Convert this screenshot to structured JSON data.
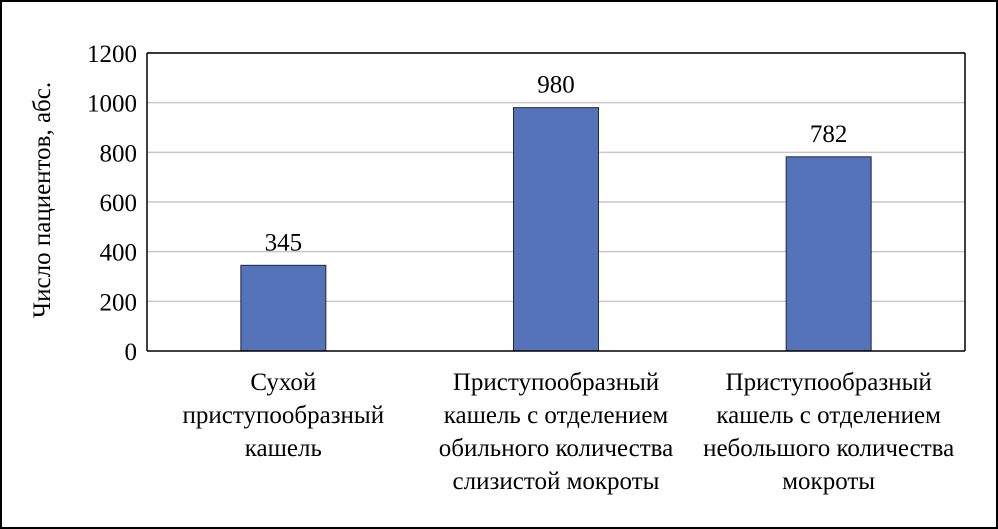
{
  "chart_data": {
    "type": "bar",
    "categories": [
      [
        "Сухой",
        "приступообразный",
        "кашель"
      ],
      [
        "Приступообразный",
        "кашель с отделением",
        "обильного количества",
        "слизистой мокроты"
      ],
      [
        "Приступообразный",
        "кашель с отделением",
        "небольшого количества",
        "мокроты"
      ]
    ],
    "values": [
      345,
      980,
      782
    ],
    "data_labels": [
      "345",
      "980",
      "782"
    ],
    "ylabel": "Число пациентов, абс.",
    "ylim": [
      0,
      1200
    ],
    "yticks": [
      0,
      200,
      400,
      600,
      800,
      1000,
      1200
    ],
    "grid": true,
    "legend": "none",
    "bar_color": "#5573b8",
    "bar_stroke": "#1f2a44",
    "grid_color": "#c8c8c8"
  }
}
